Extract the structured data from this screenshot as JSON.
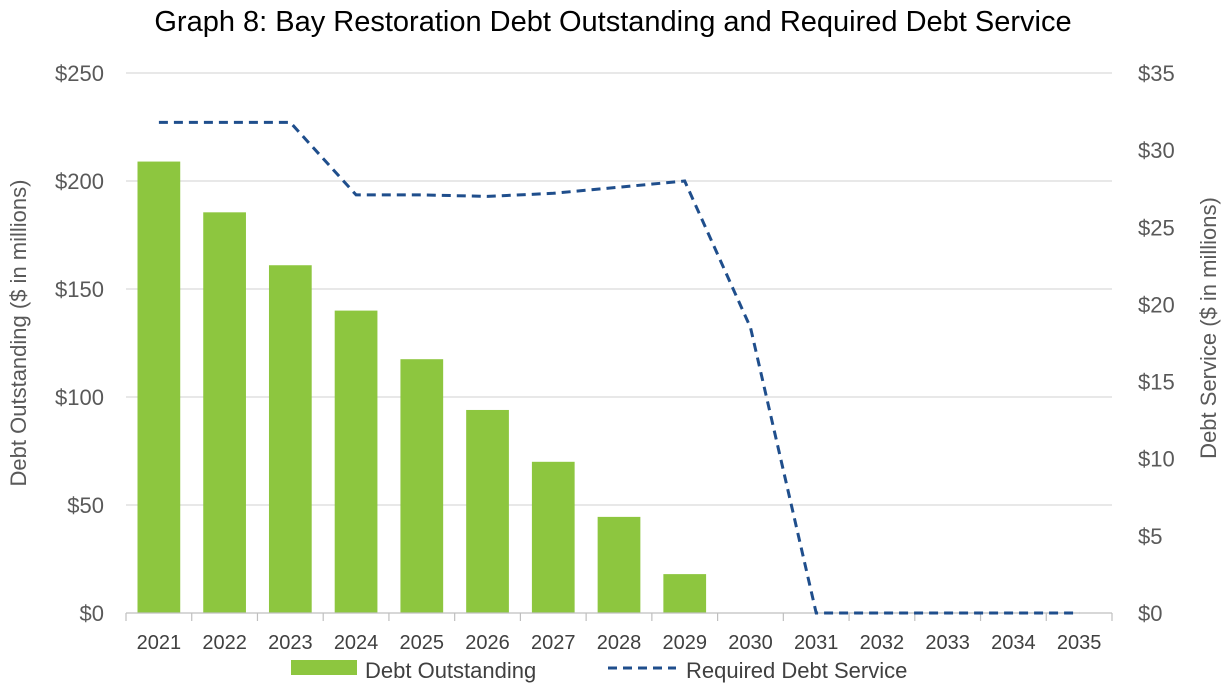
{
  "chart_data": {
    "type": "bar",
    "title": "Graph 8: Bay Restoration Debt Outstanding and Required Debt Service",
    "categories": [
      "2021",
      "2022",
      "2023",
      "2024",
      "2025",
      "2026",
      "2027",
      "2028",
      "2029",
      "2030",
      "2031",
      "2032",
      "2033",
      "2034",
      "2035"
    ],
    "series": [
      {
        "name": "Debt Outstanding",
        "type": "bar",
        "axis": "left",
        "color": "#8DC63F",
        "values": [
          209,
          185.5,
          161,
          140,
          117.5,
          94,
          70,
          44.5,
          18,
          0,
          0,
          0,
          0,
          0,
          0
        ]
      },
      {
        "name": "Required Debt Service",
        "type": "line",
        "line_style": "dashed",
        "axis": "right",
        "color": "#1F4E8C",
        "values": [
          31.8,
          31.8,
          31.8,
          27.1,
          27.1,
          27.0,
          27.2,
          27.6,
          28.0,
          18.5,
          0,
          0,
          0,
          0,
          0
        ]
      }
    ],
    "y_left": {
      "label": "Debt Outstanding ($ in millions)",
      "ylim": [
        0,
        250
      ],
      "ticks": [
        0,
        50,
        100,
        150,
        200,
        250
      ],
      "tick_labels": [
        "$0",
        "$50",
        "$100",
        "$150",
        "$200",
        "$250"
      ]
    },
    "y_right": {
      "label": "Debt Service ($ in millions)",
      "ylim": [
        0,
        35
      ],
      "ticks": [
        0,
        5,
        10,
        15,
        20,
        25,
        30,
        35
      ],
      "tick_labels": [
        "$0",
        "$5",
        "$10",
        "$15",
        "$20",
        "$25",
        "$30",
        "$35"
      ]
    },
    "grid": true,
    "legend_position": "bottom",
    "colors": {
      "gridline": "#D9D9D9",
      "axis_line": "#BFBFBF"
    }
  }
}
